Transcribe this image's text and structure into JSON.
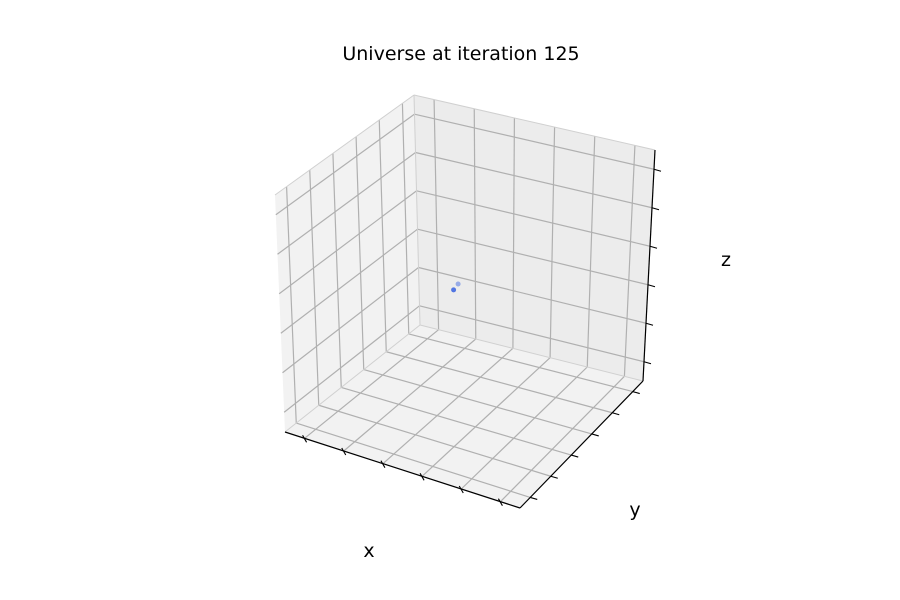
{
  "chart_data": {
    "type": "scatter",
    "projection": "3d",
    "title": "Universe at iteration 125",
    "xlabel": "x",
    "ylabel": "y",
    "zlabel": "z",
    "grid": true,
    "tick_labels_shown": false,
    "series": [
      {
        "color": "#4169e1",
        "points": [
          {
            "x": 0.45,
            "y": 0.5,
            "z": 0.5,
            "alpha": 0.9
          },
          {
            "x": 0.47,
            "y": 0.5,
            "z": 0.53,
            "alpha": 0.5
          }
        ]
      }
    ]
  }
}
